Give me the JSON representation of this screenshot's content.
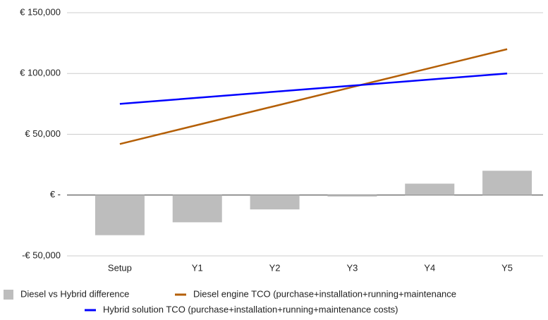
{
  "chart_data": {
    "type": "combo",
    "categories": [
      "Setup",
      "Y1",
      "Y2",
      "Y3",
      "Y4",
      "Y5"
    ],
    "series": [
      {
        "name": "Diesel vs Hybrid difference",
        "type": "bar",
        "color": "#bdbdbd",
        "values": [
          -33000,
          -22400,
          -11800,
          -1200,
          9400,
          20000
        ]
      },
      {
        "name": "Diesel engine TCO (purchase+installation+running+maintenance",
        "type": "line",
        "color": "#b45f06",
        "values": [
          42000,
          57600,
          73200,
          88800,
          104400,
          120000
        ]
      },
      {
        "name": "Hybrid solution TCO (purchase+installation+running+maintenance costs)",
        "type": "line",
        "color": "#0000ff",
        "values": [
          75000,
          80000,
          85000,
          90000,
          95000,
          100000
        ]
      }
    ],
    "ylim": [
      -50000,
      150000
    ],
    "yticks": [
      {
        "value": -50000,
        "label": "-€ 50,000"
      },
      {
        "value": 0,
        "label": "€ -"
      },
      {
        "value": 50000,
        "label": "€ 50,000"
      },
      {
        "value": 100000,
        "label": "€ 100,000"
      },
      {
        "value": 150000,
        "label": "€ 150,000"
      }
    ],
    "grid": true
  }
}
